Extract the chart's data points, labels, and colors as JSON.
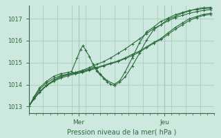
{
  "title": "",
  "xlabel": "Pression niveau de la mer( hPa )",
  "ylabel": "",
  "bg_color": "#cce8df",
  "line_color": "#2d6b3c",
  "grid_color": "#a0c8b8",
  "axis_color": "#2d6b3c",
  "tick_label_color": "#2d6b3c",
  "xlabel_color": "#2d6b3c",
  "ylim": [
    1012.7,
    1017.6
  ],
  "xlim": [
    0,
    52
  ],
  "yticks": [
    1013,
    1014,
    1015,
    1016,
    1017
  ],
  "xtick_labels_pos": [
    14,
    38
  ],
  "xtick_labels": [
    "Mer",
    "Jeu"
  ],
  "series": [
    [
      0.0,
      1013.0,
      1.5,
      1013.35,
      3.0,
      1013.65,
      5.0,
      1013.95,
      7.0,
      1014.2,
      9.0,
      1014.38,
      11.0,
      1014.48,
      13.0,
      1014.55,
      15.0,
      1014.65,
      17.0,
      1014.78,
      19.0,
      1014.92,
      21.0,
      1015.05,
      23.0,
      1015.22,
      25.0,
      1015.42,
      27.0,
      1015.62,
      29.0,
      1015.85,
      31.0,
      1016.08,
      33.0,
      1016.32,
      35.0,
      1016.55,
      37.0,
      1016.72,
      39.0,
      1016.9,
      41.0,
      1017.05,
      43.0,
      1017.15,
      45.0,
      1017.25,
      47.0,
      1017.32,
      49.0,
      1017.38,
      51.0,
      1017.42
    ],
    [
      0.0,
      1013.0,
      1.5,
      1013.45,
      3.0,
      1013.85,
      5.0,
      1014.15,
      7.0,
      1014.38,
      9.0,
      1014.5,
      11.0,
      1014.55,
      12.0,
      1014.6,
      13.5,
      1015.2,
      14.5,
      1015.6,
      15.2,
      1015.78,
      16.0,
      1015.55,
      17.0,
      1015.28,
      18.0,
      1014.92,
      19.0,
      1014.62,
      20.0,
      1014.45,
      21.0,
      1014.28,
      22.0,
      1014.12,
      23.0,
      1014.02,
      24.0,
      1013.95,
      25.5,
      1014.12,
      27.0,
      1014.35,
      29.0,
      1014.85,
      31.0,
      1015.42,
      33.0,
      1016.02,
      35.0,
      1016.5,
      37.0,
      1016.72,
      39.0,
      1016.98,
      41.0,
      1017.1,
      43.0,
      1017.25,
      45.0,
      1017.35,
      47.0,
      1017.45,
      49.0,
      1017.5,
      51.0,
      1017.52
    ],
    [
      0.0,
      1013.0,
      1.5,
      1013.42,
      3.0,
      1013.78,
      5.0,
      1014.08,
      7.0,
      1014.28,
      9.0,
      1014.42,
      11.0,
      1014.48,
      13.0,
      1014.55,
      15.0,
      1014.62,
      17.0,
      1014.72,
      18.5,
      1014.82,
      20.0,
      1014.48,
      22.0,
      1014.18,
      24.0,
      1014.02,
      25.5,
      1014.18,
      27.0,
      1014.58,
      29.0,
      1015.22,
      31.0,
      1015.9,
      33.0,
      1016.4,
      35.0,
      1016.62,
      37.0,
      1016.88,
      39.0,
      1017.02,
      41.0,
      1017.18,
      43.0,
      1017.28,
      45.0,
      1017.38,
      47.0,
      1017.42,
      49.0,
      1017.46,
      51.0,
      1017.48
    ],
    [
      0.0,
      1013.0,
      1.5,
      1013.38,
      3.0,
      1013.68,
      5.0,
      1013.98,
      7.0,
      1014.2,
      9.0,
      1014.35,
      11.0,
      1014.45,
      13.0,
      1014.52,
      15.0,
      1014.58,
      17.0,
      1014.68,
      19.0,
      1014.78,
      21.0,
      1014.88,
      23.0,
      1014.98,
      25.0,
      1015.08,
      27.0,
      1015.22,
      29.0,
      1015.38,
      31.0,
      1015.52,
      33.0,
      1015.72,
      35.0,
      1015.92,
      37.0,
      1016.1,
      39.0,
      1016.35,
      41.0,
      1016.6,
      43.0,
      1016.8,
      45.0,
      1017.0,
      47.0,
      1017.1,
      49.0,
      1017.2,
      51.0,
      1017.25
    ],
    [
      0.0,
      1013.0,
      1.5,
      1013.35,
      3.0,
      1013.65,
      5.0,
      1013.95,
      7.0,
      1014.15,
      9.0,
      1014.3,
      11.0,
      1014.4,
      13.0,
      1014.48,
      15.0,
      1014.55,
      17.0,
      1014.65,
      19.0,
      1014.75,
      21.0,
      1014.85,
      23.0,
      1014.95,
      25.0,
      1015.05,
      27.0,
      1015.18,
      29.0,
      1015.32,
      31.0,
      1015.48,
      33.0,
      1015.68,
      35.0,
      1015.88,
      37.0,
      1016.05,
      39.0,
      1016.28,
      41.0,
      1016.52,
      43.0,
      1016.72,
      45.0,
      1016.92,
      47.0,
      1017.05,
      49.0,
      1017.15,
      51.0,
      1017.2
    ]
  ]
}
